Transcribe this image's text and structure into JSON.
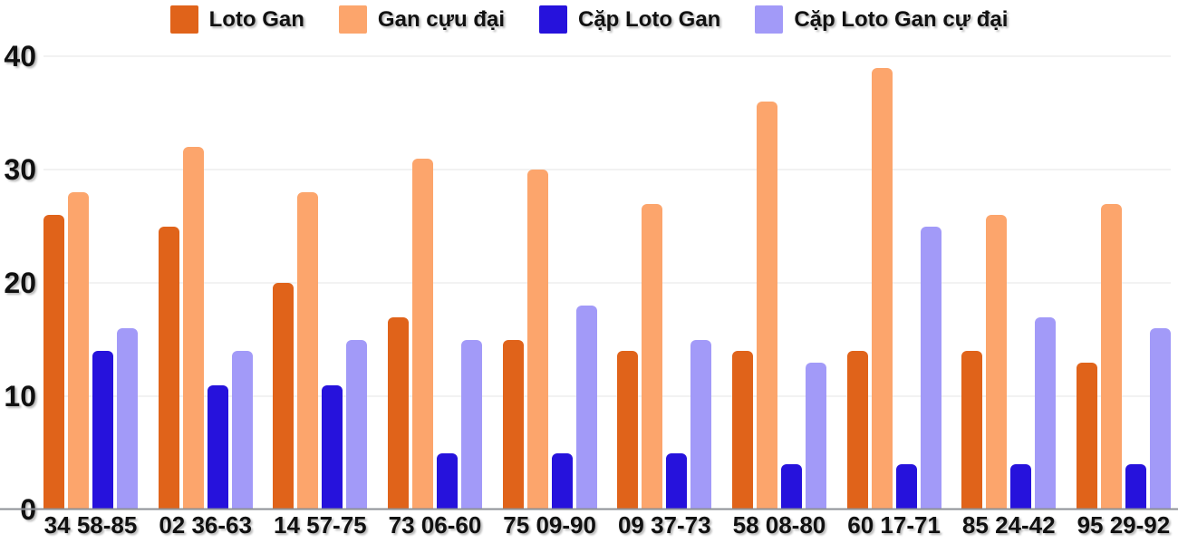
{
  "chart_data": {
    "type": "bar",
    "title": "",
    "xlabel": "",
    "ylabel": "",
    "categories": [
      "34 58-85",
      "02 36-63",
      "14 57-75",
      "73 06-60",
      "75 09-90",
      "09 37-73",
      "58 08-80",
      "60 17-71",
      "85 24-42",
      "95 29-92"
    ],
    "series": [
      {
        "name": "Loto Gan",
        "color": "#E0631A",
        "values": [
          26,
          25,
          20,
          17,
          15,
          14,
          14,
          14,
          14,
          13
        ]
      },
      {
        "name": "Gan cựu đại",
        "color": "#FCA56C",
        "values": [
          28,
          32,
          28,
          31,
          30,
          27,
          36,
          39,
          26,
          27
        ]
      },
      {
        "name": "Cặp Loto Gan",
        "color": "#2612DC",
        "values": [
          14,
          11,
          11,
          5,
          5,
          5,
          4,
          4,
          4,
          4
        ]
      },
      {
        "name": "Cặp Loto Gan cự đại",
        "color": "#A29AF8",
        "values": [
          16,
          14,
          15,
          15,
          18,
          15,
          13,
          25,
          17,
          16
        ]
      }
    ],
    "ylim": [
      0,
      40
    ],
    "yticks": [
      0,
      10,
      20,
      30,
      40
    ],
    "grid": true,
    "legend_position": "top",
    "colors": {
      "grid": "#e4e4e4",
      "axis": "#8d9096",
      "text": "#111111",
      "background": "#ffffff"
    }
  }
}
